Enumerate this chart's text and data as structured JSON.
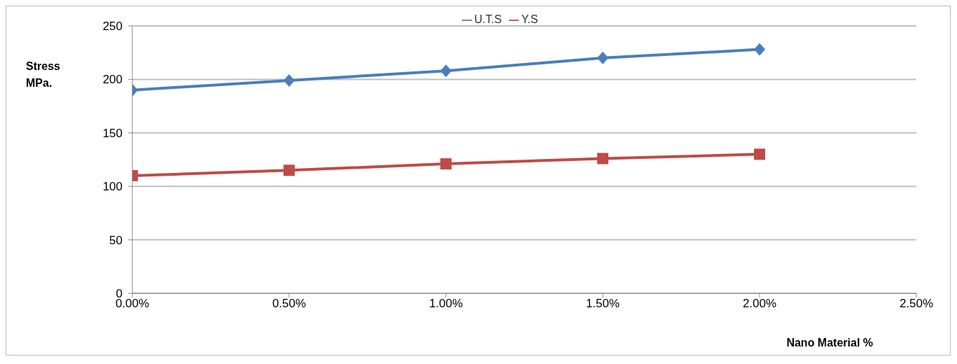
{
  "chart_data": {
    "type": "line",
    "xlabel": "Nano Material %",
    "ylabel": "Stress MPa.",
    "x": [
      0,
      0.5,
      1,
      1.5,
      2
    ],
    "series": [
      {
        "name": "U.T.S",
        "color": "#4a7ebb",
        "marker": "diamond",
        "values": [
          190,
          199,
          208,
          220,
          228
        ]
      },
      {
        "name": "Y.S",
        "color": "#be4b48",
        "marker": "square",
        "values": [
          110,
          115,
          121,
          126,
          130
        ]
      }
    ],
    "xlim": [
      0,
      2.5
    ],
    "xticks": [
      {
        "value": 0,
        "label": "0.00%"
      },
      {
        "value": 0.5,
        "label": "0.50%"
      },
      {
        "value": 1,
        "label": "1.00%"
      },
      {
        "value": 1.5,
        "label": "1.50%"
      },
      {
        "value": 2,
        "label": "2.00%"
      },
      {
        "value": 2.5,
        "label": "2.50%"
      }
    ],
    "ylim": [
      0,
      250
    ],
    "yticks": [
      0,
      50,
      100,
      150,
      200,
      250
    ],
    "grid": "y",
    "legend": "top"
  }
}
